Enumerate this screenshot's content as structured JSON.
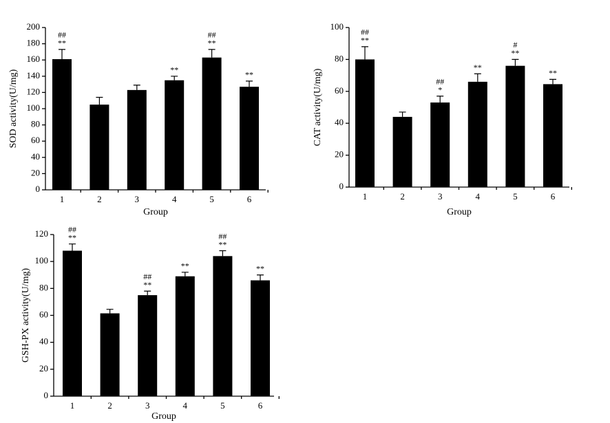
{
  "chart_data": [
    {
      "type": "bar",
      "ylabel": "SOD activity(U/mg)",
      "xlabel": "Group",
      "categories": [
        "1",
        "2",
        "3",
        "4",
        "5",
        "6"
      ],
      "values": [
        161,
        105,
        123,
        135,
        163,
        127
      ],
      "errors": [
        12,
        9,
        6,
        5,
        10,
        7
      ],
      "annotations": [
        [
          "##",
          "**"
        ],
        null,
        null,
        [
          "**"
        ],
        [
          "##",
          "**"
        ],
        [
          "**"
        ]
      ],
      "color": "#000000",
      "ylim": [
        0,
        200
      ],
      "yticks": [
        0,
        20,
        40,
        60,
        80,
        100,
        120,
        140,
        160,
        180,
        200
      ]
    },
    {
      "type": "bar",
      "ylabel": "CAT activity(U/mg)",
      "xlabel": "Group",
      "categories": [
        "1",
        "2",
        "3",
        "4",
        "5",
        "6"
      ],
      "values": [
        80,
        44,
        53,
        66,
        76,
        64.5
      ],
      "errors": [
        8,
        3,
        4,
        5,
        4,
        3
      ],
      "annotations": [
        [
          "##",
          "**"
        ],
        null,
        [
          "##",
          "*"
        ],
        [
          "**"
        ],
        [
          "#",
          "**"
        ],
        [
          "**"
        ]
      ],
      "color": "#000000",
      "ylim": [
        0,
        100
      ],
      "yticks": [
        0,
        20,
        40,
        60,
        80,
        100
      ]
    },
    {
      "type": "bar",
      "ylabel": "GSH-PX activity(U/mg)",
      "xlabel": "Group",
      "categories": [
        "1",
        "2",
        "3",
        "4",
        "5",
        "6"
      ],
      "values": [
        108,
        61.5,
        75,
        89,
        104,
        86
      ],
      "errors": [
        5,
        3,
        3,
        3,
        4,
        4
      ],
      "annotations": [
        [
          "##",
          "**"
        ],
        null,
        [
          "##",
          "**"
        ],
        [
          "**"
        ],
        [
          "##",
          "**"
        ],
        [
          "**"
        ]
      ],
      "color": "#000000",
      "ylim": [
        0,
        120
      ],
      "yticks": [
        0,
        20,
        40,
        60,
        80,
        100,
        120
      ]
    }
  ]
}
